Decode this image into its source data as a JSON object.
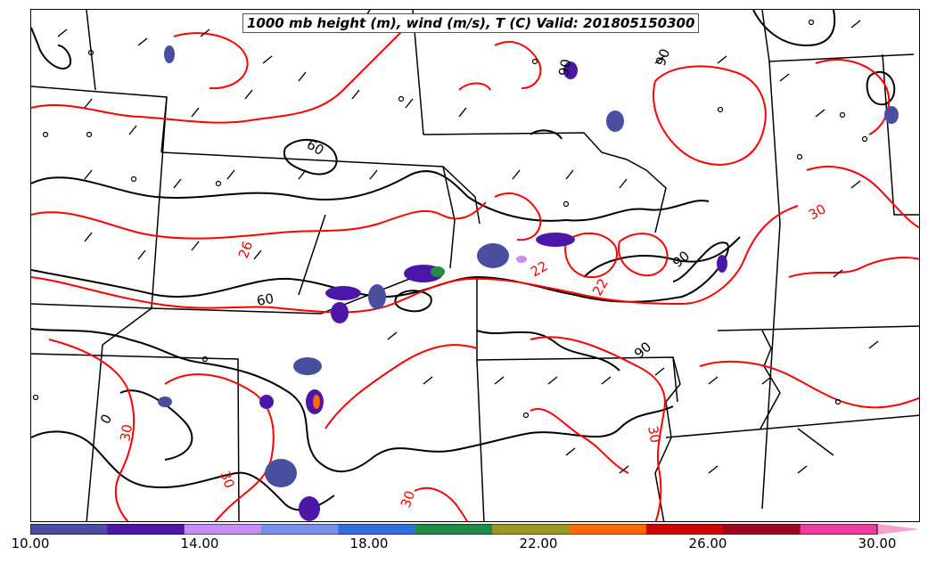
{
  "map": {
    "title": "1000 mb height (m), wind (m/s), T (C) Valid: 201805150300",
    "height_contour_color": "#000000",
    "temperature_contour_color": "#ff0000",
    "height_labels": [
      "60",
      "60",
      "90",
      "90",
      "90",
      "0",
      "90"
    ],
    "temperature_labels": [
      "26",
      "22",
      "22",
      "30",
      "30",
      "30",
      "30",
      "30"
    ]
  },
  "colorbar": {
    "ticks": [
      "10.00",
      "14.00",
      "18.00",
      "22.00",
      "26.00",
      "30.00"
    ],
    "colors": [
      "#4a4ea0",
      "#4c17a8",
      "#c58ef5",
      "#7a8fe8",
      "#2f6fe0",
      "#228b45",
      "#9a9a20",
      "#ff6a00",
      "#d40000",
      "#a0001e",
      "#f03ca0"
    ],
    "extend_color": "#f5a0d0"
  }
}
